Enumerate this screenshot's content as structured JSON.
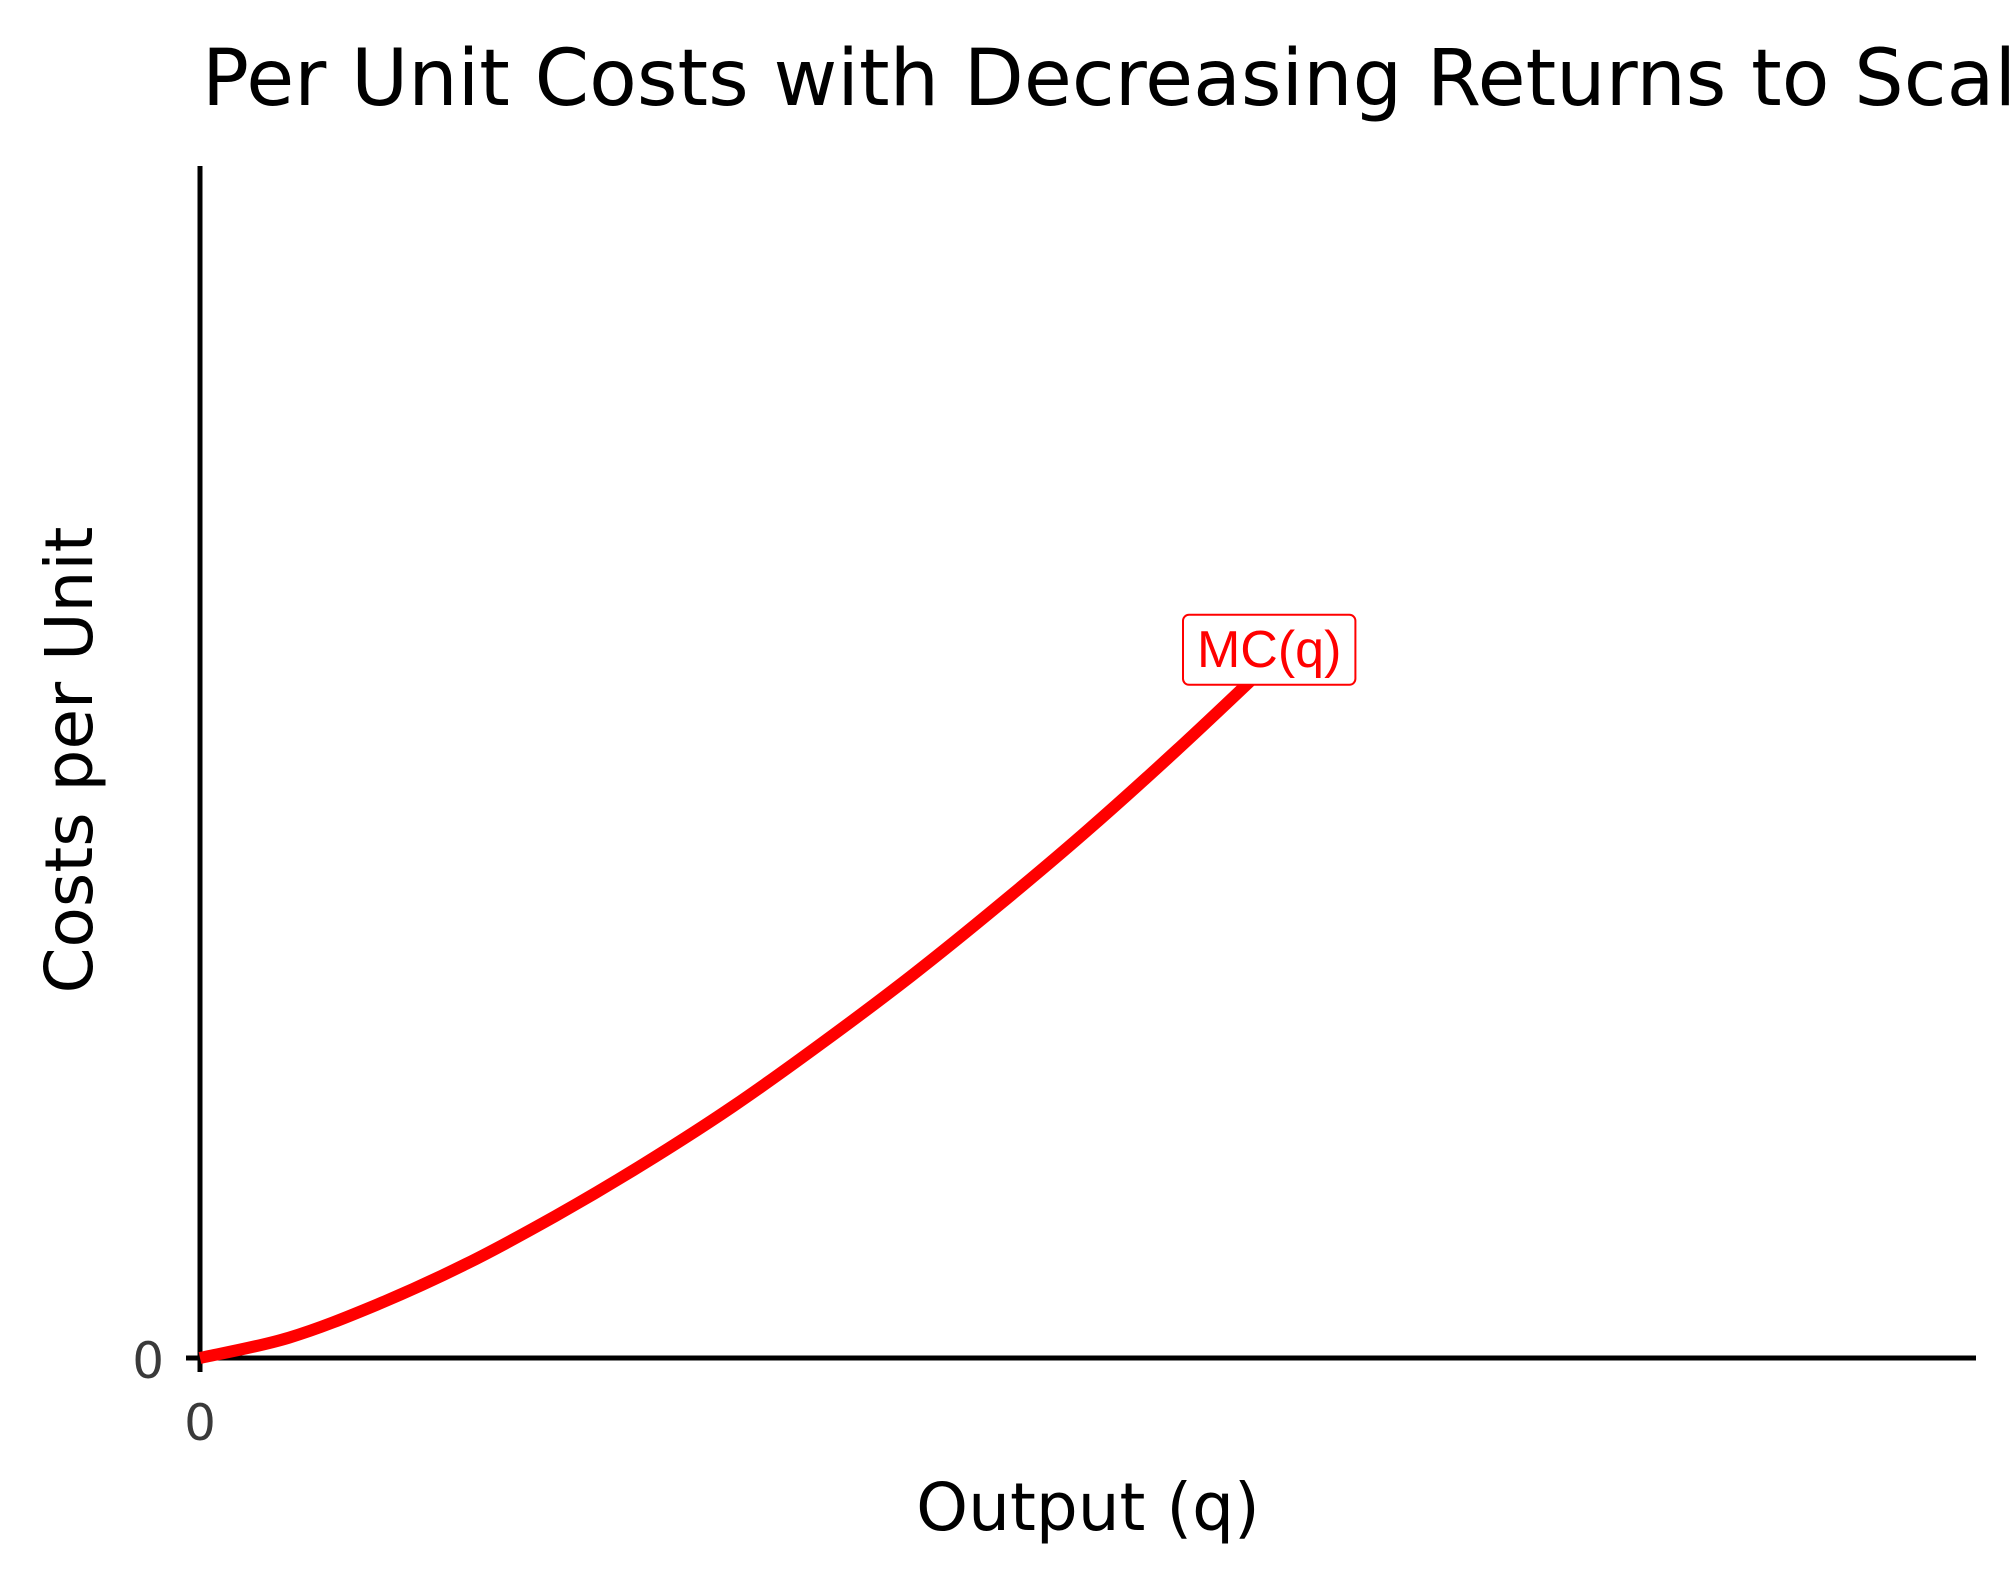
{
  "chart_data": {
    "type": "line",
    "title": "Per Unit Costs with Decreasing Returns to Scale",
    "xlabel": "Output (q)",
    "ylabel": "Costs per Unit",
    "x_ticks": [
      "0"
    ],
    "y_ticks": [
      "0"
    ],
    "xlim": [
      0,
      10
    ],
    "ylim": [
      0,
      10
    ],
    "grid": false,
    "series": [
      {
        "name": "MC(q)",
        "color": "#ff0000",
        "x": [
          0,
          0.5,
          1,
          1.5,
          2,
          2.5,
          3,
          3.5,
          4,
          4.5,
          5,
          5.5,
          6,
          6.28
        ],
        "y": [
          0,
          0.17,
          0.45,
          0.79,
          1.19,
          1.63,
          2.11,
          2.64,
          3.2,
          3.8,
          4.43,
          5.1,
          5.8,
          6.2
        ]
      }
    ],
    "annotations": [
      {
        "text": "MC(q)",
        "x": 6.02,
        "y": 5.95,
        "color": "#ff0000"
      }
    ]
  }
}
